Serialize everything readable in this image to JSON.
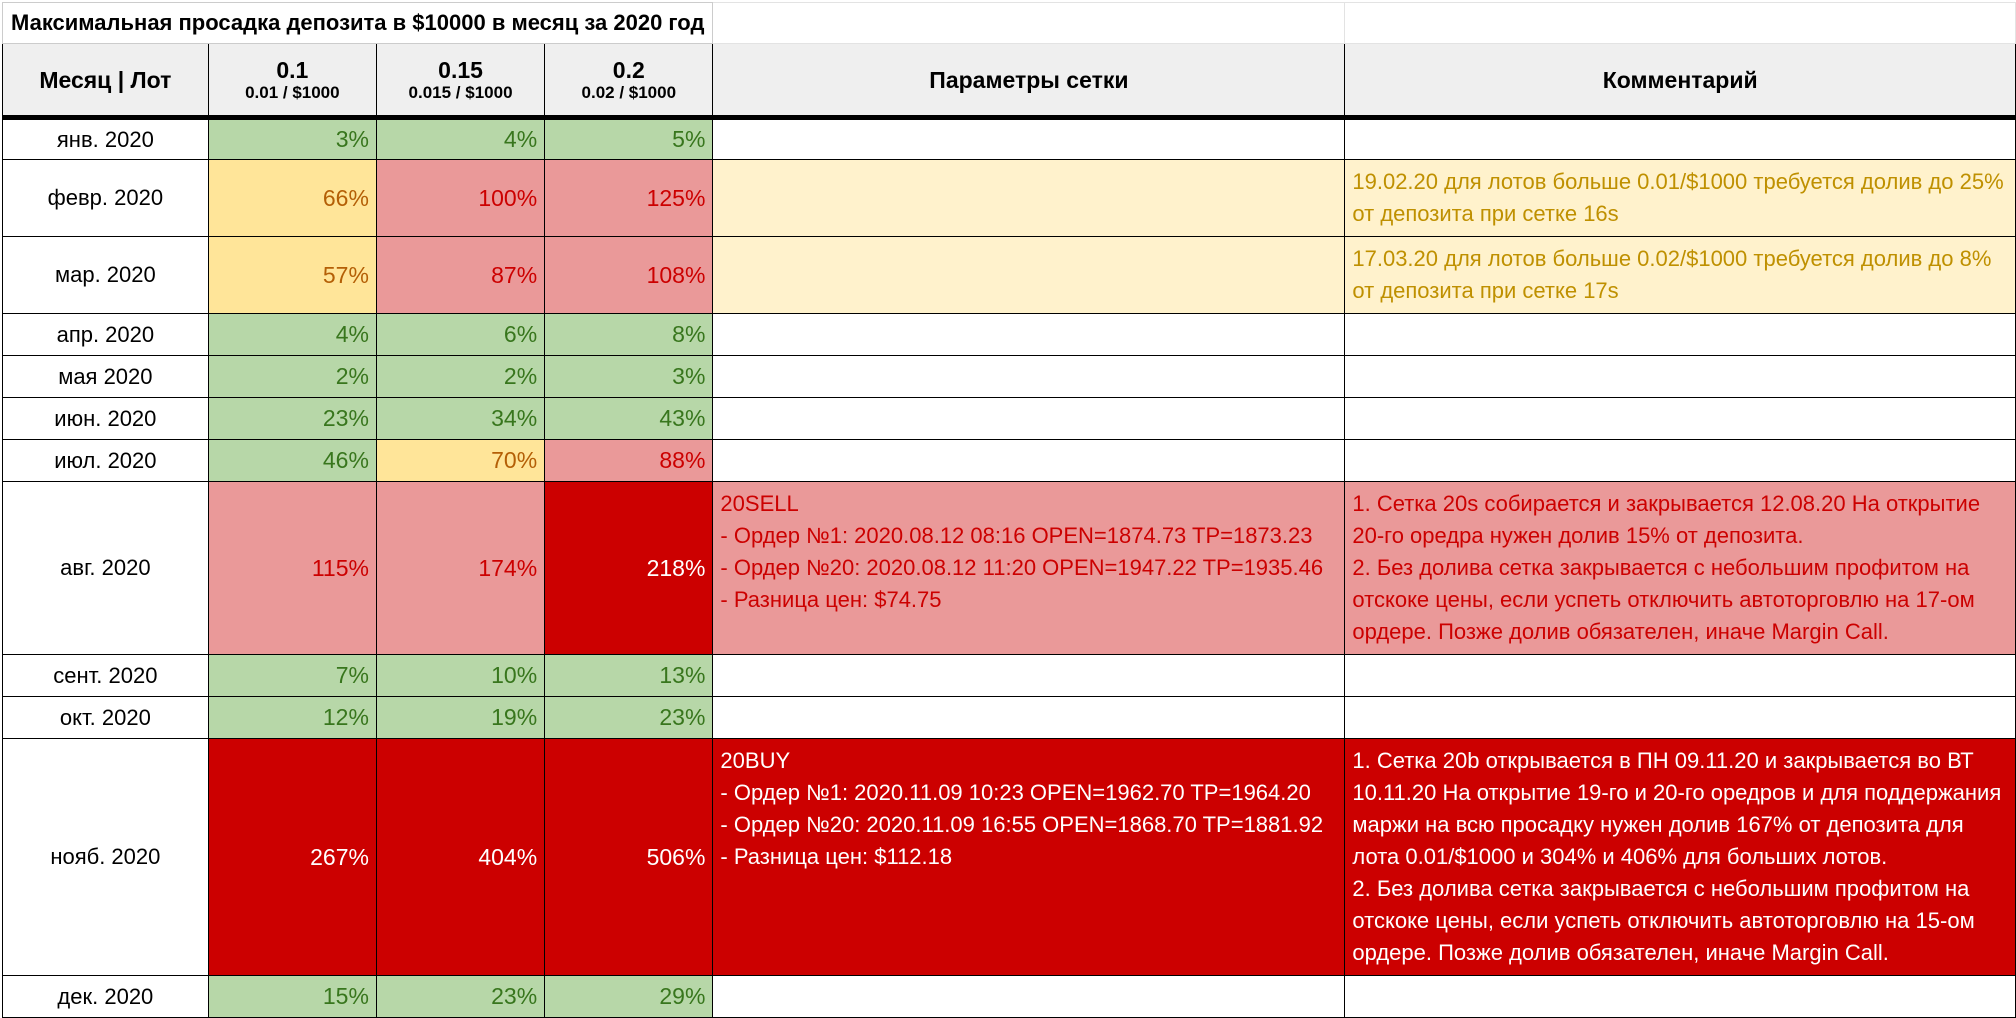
{
  "title": "Максимальная просадка депозита в $10000 в месяц за 2020 год",
  "header": {
    "month_lot": "Месяц | Лот",
    "lots": [
      {
        "main": "0.1",
        "sub": "0.01 / $1000"
      },
      {
        "main": "0.15",
        "sub": "0.015 / $1000"
      },
      {
        "main": "0.2",
        "sub": "0.02 / $1000"
      }
    ],
    "params": "Параметры сетки",
    "comment": "Комментарий"
  },
  "colors": {
    "green_bg": "#b7d7a8",
    "green_text": "#38761d",
    "yellow_bg": "#ffe599",
    "yellow_text": "#b45f06",
    "red_bg": "#ea9999",
    "red_text": "#cc0000",
    "dark_red_bg": "#cc0000",
    "dark_red_text": "#ffffff",
    "light_yellow_bg": "#fff2cc",
    "light_yellow_text": "#bf9000",
    "header_bg": "#efefef"
  },
  "rows": [
    {
      "month": "янв. 2020",
      "v1": "3%",
      "v2": "4%",
      "v3": "5%"
    },
    {
      "month": "февр. 2020",
      "v1": "66%",
      "v2": "100%",
      "v3": "125%",
      "comment": [
        "19.02.20 для лотов больше 0.01/$1000 требуется долив до 25%",
        "от депозита при сетке 16s"
      ]
    },
    {
      "month": "мар. 2020",
      "v1": "57%",
      "v2": "87%",
      "v3": "108%",
      "comment": [
        "17.03.20 для лотов больше 0.02/$1000 требуется долив до 8%",
        "от депозита при сетке 17s"
      ]
    },
    {
      "month": "апр. 2020",
      "v1": "4%",
      "v2": "6%",
      "v3": "8%"
    },
    {
      "month": "мая 2020",
      "v1": "2%",
      "v2": "2%",
      "v3": "3%"
    },
    {
      "month": "июн. 2020",
      "v1": "23%",
      "v2": "34%",
      "v3": "43%"
    },
    {
      "month": "июл. 2020",
      "v1": "46%",
      "v2": "70%",
      "v3": "88%"
    },
    {
      "month": "авг. 2020",
      "v1": "115%",
      "v2": "174%",
      "v3": "218%",
      "params": [
        "20SELL",
        "- Ордер №1: 2020.08.12 08:16 OPEN=1874.73 TP=1873.23",
        "- Ордер №20: 2020.08.12 11:20 OPEN=1947.22 TP=1935.46",
        "- Разница цен: $74.75"
      ],
      "comment": [
        "1. Сетка 20s собирается и закрывается 12.08.20 На открытие",
        "20-го оредра нужен долив 15% от депозита.",
        "2. Без долива сетка закрывается с небольшим профитом на",
        "отскоке цены, если успеть отключить автоторговлю на 17-ом",
        "ордере. Позже долив обязателен, иначе Margin Call."
      ]
    },
    {
      "month": "сент. 2020",
      "v1": "7%",
      "v2": "10%",
      "v3": "13%"
    },
    {
      "month": "окт. 2020",
      "v1": "12%",
      "v2": "19%",
      "v3": "23%"
    },
    {
      "month": "нояб. 2020",
      "v1": "267%",
      "v2": "404%",
      "v3": "506%",
      "params": [
        "20BUY",
        "- Ордер №1: 2020.11.09 10:23 OPEN=1962.70 TP=1964.20",
        "- Ордер №20: 2020.11.09 16:55 OPEN=1868.70 TP=1881.92",
        "- Разница цен: $112.18"
      ],
      "comment": [
        "1. Сетка 20b открывается в ПН 09.11.20 и закрывается во ВТ",
        "10.11.20 На открытие 19-го и 20-го оредров и для поддержания",
        "маржи на всю просадку нужен долив 167% от депозита для",
        "лота 0.01/$1000 и 304% и 406% для больших лотов.",
        "2. Без долива сетка закрывается с небольшим профитом на",
        "отскоке цены, если успеть отключить автоторговлю на 15-ом",
        "ордере. Позже долив обязателен, иначе Margin Call."
      ]
    },
    {
      "month": "дек. 2020",
      "v1": "15%",
      "v2": "23%",
      "v3": "29%"
    }
  ]
}
